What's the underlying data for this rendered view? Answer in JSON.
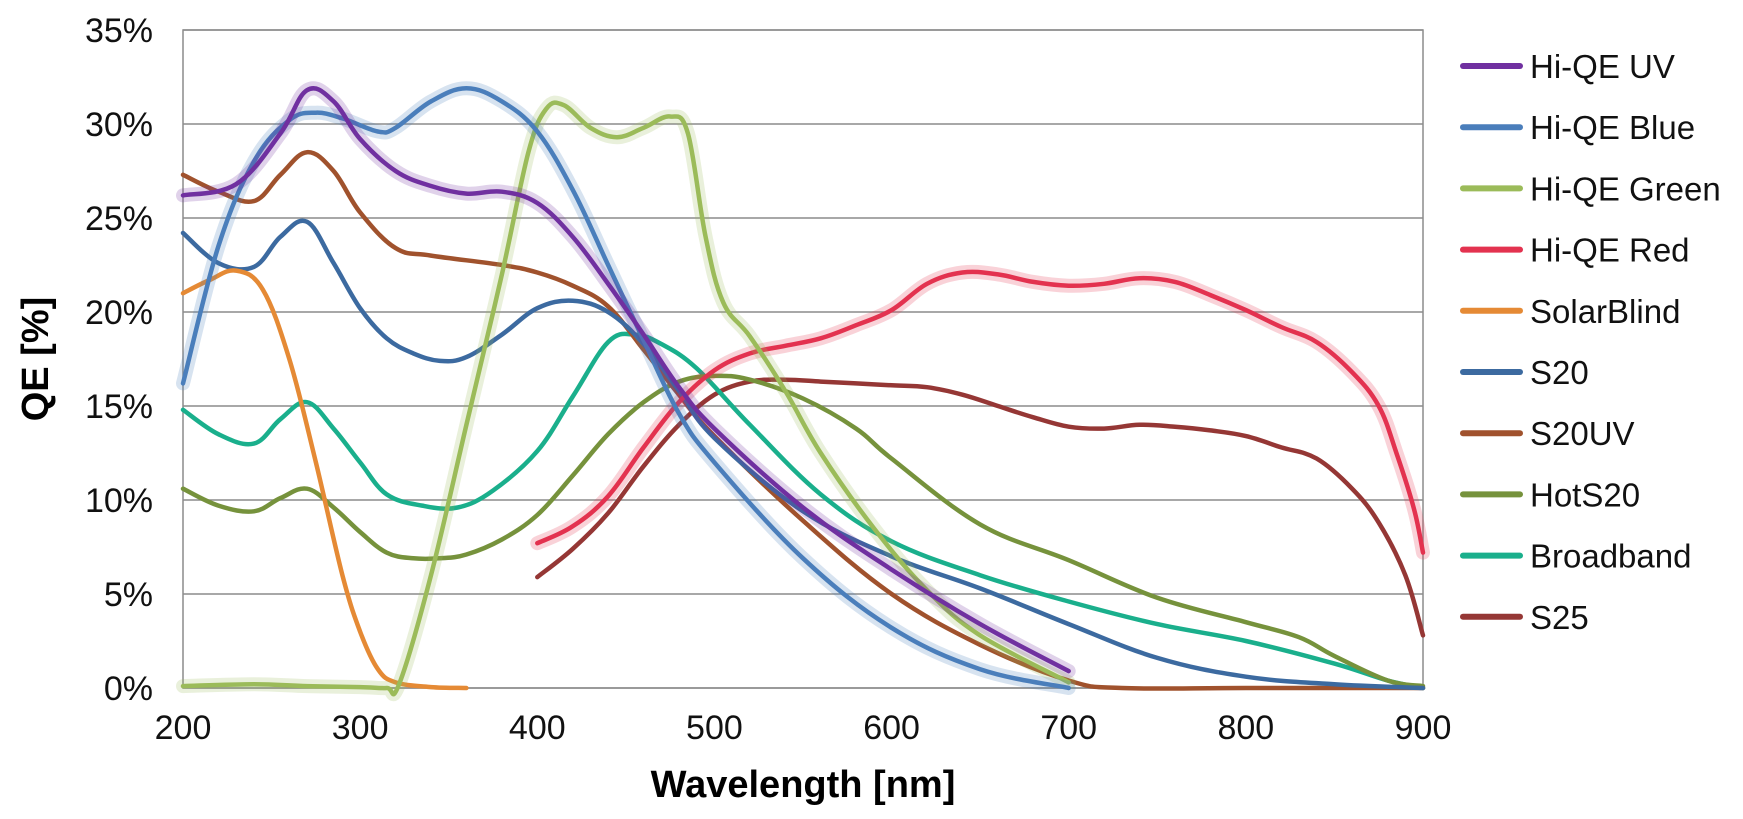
{
  "chart_data": {
    "type": "line",
    "xlabel": "Wavelength [nm]",
    "ylabel": "QE [%]",
    "xlim": [
      200,
      900
    ],
    "ylim": [
      0,
      35
    ],
    "x_ticks": [
      "200",
      "300",
      "400",
      "500",
      "600",
      "700",
      "800",
      "900"
    ],
    "y_ticks": [
      "0%",
      "5%",
      "10%",
      "15%",
      "20%",
      "25%",
      "30%",
      "35%"
    ],
    "grid": "horizontal",
    "legend_position": "right",
    "series": [
      {
        "name": "Hi-QE UV",
        "color": "#7030a0",
        "glow": true,
        "points": [
          [
            200,
            26.2
          ],
          [
            230,
            26.8
          ],
          [
            255,
            29.5
          ],
          [
            270,
            31.8
          ],
          [
            285,
            31.2
          ],
          [
            300,
            29.2
          ],
          [
            320,
            27.5
          ],
          [
            340,
            26.7
          ],
          [
            360,
            26.3
          ],
          [
            380,
            26.4
          ],
          [
            400,
            25.8
          ],
          [
            420,
            24
          ],
          [
            440,
            21.5
          ],
          [
            460,
            18.8
          ],
          [
            480,
            16
          ],
          [
            500,
            13.8
          ],
          [
            550,
            9.6
          ],
          [
            600,
            6.3
          ],
          [
            650,
            3.4
          ],
          [
            700,
            0.9
          ]
        ]
      },
      {
        "name": "Hi-QE Blue",
        "color": "#4a7ebb",
        "glow": true,
        "points": [
          [
            200,
            16.2
          ],
          [
            220,
            23.5
          ],
          [
            240,
            28
          ],
          [
            260,
            30.2
          ],
          [
            275,
            30.6
          ],
          [
            290,
            30.3
          ],
          [
            310,
            29.6
          ],
          [
            320,
            29.8
          ],
          [
            340,
            31.2
          ],
          [
            360,
            31.9
          ],
          [
            380,
            31.2
          ],
          [
            400,
            29.6
          ],
          [
            420,
            26.5
          ],
          [
            440,
            22.5
          ],
          [
            460,
            18.5
          ],
          [
            480,
            14.6
          ],
          [
            500,
            12
          ],
          [
            550,
            6.9
          ],
          [
            600,
            3.2
          ],
          [
            650,
            1
          ],
          [
            700,
            0
          ]
        ]
      },
      {
        "name": "Hi-QE Green",
        "color": "#9bbb59",
        "glow": true,
        "points": [
          [
            200,
            0.1
          ],
          [
            240,
            0.2
          ],
          [
            270,
            0.1
          ],
          [
            300,
            0.05
          ],
          [
            315,
            0
          ],
          [
            322,
            0.2
          ],
          [
            340,
            6
          ],
          [
            360,
            14
          ],
          [
            380,
            22
          ],
          [
            395,
            28.5
          ],
          [
            405,
            30.8
          ],
          [
            415,
            31
          ],
          [
            430,
            29.8
          ],
          [
            445,
            29.3
          ],
          [
            460,
            29.8
          ],
          [
            475,
            30.4
          ],
          [
            485,
            29.5
          ],
          [
            495,
            24
          ],
          [
            505,
            20.5
          ],
          [
            520,
            18.7
          ],
          [
            540,
            15.8
          ],
          [
            560,
            12.5
          ],
          [
            590,
            8.5
          ],
          [
            620,
            5.2
          ],
          [
            650,
            2.8
          ],
          [
            700,
            0.3
          ]
        ]
      },
      {
        "name": "Hi-QE Red",
        "color": "#e3324f",
        "glow": true,
        "points": [
          [
            400,
            7.7
          ],
          [
            420,
            8.6
          ],
          [
            440,
            10.2
          ],
          [
            460,
            12.8
          ],
          [
            480,
            15.2
          ],
          [
            500,
            16.9
          ],
          [
            520,
            17.8
          ],
          [
            540,
            18.2
          ],
          [
            560,
            18.6
          ],
          [
            580,
            19.3
          ],
          [
            600,
            20.1
          ],
          [
            620,
            21.5
          ],
          [
            640,
            22.1
          ],
          [
            660,
            22
          ],
          [
            680,
            21.6
          ],
          [
            700,
            21.4
          ],
          [
            720,
            21.5
          ],
          [
            740,
            21.8
          ],
          [
            760,
            21.6
          ],
          [
            780,
            20.9
          ],
          [
            800,
            20.1
          ],
          [
            820,
            19.2
          ],
          [
            840,
            18.4
          ],
          [
            860,
            16.8
          ],
          [
            875,
            15
          ],
          [
            885,
            12.5
          ],
          [
            895,
            9.5
          ],
          [
            900,
            7.2
          ]
        ]
      },
      {
        "name": "SolarBlind",
        "color": "#e58a35",
        "glow": false,
        "points": [
          [
            200,
            21
          ],
          [
            215,
            21.7
          ],
          [
            230,
            22.2
          ],
          [
            245,
            21.2
          ],
          [
            260,
            17.5
          ],
          [
            275,
            12
          ],
          [
            290,
            6
          ],
          [
            300,
            3
          ],
          [
            310,
            1
          ],
          [
            320,
            0.3
          ],
          [
            340,
            0.05
          ],
          [
            360,
            0
          ]
        ]
      },
      {
        "name": "S20",
        "color": "#3c6aa0",
        "glow": false,
        "points": [
          [
            200,
            24.2
          ],
          [
            220,
            22.6
          ],
          [
            240,
            22.4
          ],
          [
            255,
            24
          ],
          [
            270,
            24.8
          ],
          [
            285,
            22.6
          ],
          [
            300,
            20.2
          ],
          [
            315,
            18.6
          ],
          [
            330,
            17.8
          ],
          [
            345,
            17.4
          ],
          [
            360,
            17.6
          ],
          [
            380,
            18.8
          ],
          [
            400,
            20.2
          ],
          [
            420,
            20.6
          ],
          [
            440,
            20
          ],
          [
            460,
            18.3
          ],
          [
            480,
            15.8
          ],
          [
            500,
            13.3
          ],
          [
            550,
            9.4
          ],
          [
            600,
            7
          ],
          [
            650,
            5.3
          ],
          [
            700,
            3.4
          ],
          [
            750,
            1.6
          ],
          [
            800,
            0.6
          ],
          [
            850,
            0.2
          ],
          [
            900,
            0
          ]
        ]
      },
      {
        "name": "S20UV",
        "color": "#a0522d",
        "glow": false,
        "points": [
          [
            200,
            27.3
          ],
          [
            220,
            26.4
          ],
          [
            240,
            25.9
          ],
          [
            255,
            27.3
          ],
          [
            270,
            28.5
          ],
          [
            285,
            27.5
          ],
          [
            300,
            25.3
          ],
          [
            320,
            23.4
          ],
          [
            340,
            23
          ],
          [
            380,
            22.5
          ],
          [
            400,
            22.1
          ],
          [
            420,
            21.4
          ],
          [
            440,
            20.3
          ],
          [
            460,
            18
          ],
          [
            480,
            15.6
          ],
          [
            500,
            13.4
          ],
          [
            550,
            8.9
          ],
          [
            600,
            5
          ],
          [
            650,
            2.3
          ],
          [
            700,
            0.4
          ],
          [
            730,
            0
          ],
          [
            800,
            0
          ],
          [
            900,
            0
          ]
        ]
      },
      {
        "name": "HotS20",
        "color": "#76923c",
        "glow": false,
        "points": [
          [
            200,
            10.6
          ],
          [
            220,
            9.7
          ],
          [
            240,
            9.4
          ],
          [
            255,
            10.1
          ],
          [
            270,
            10.6
          ],
          [
            285,
            9.6
          ],
          [
            300,
            8.3
          ],
          [
            315,
            7.2
          ],
          [
            330,
            6.9
          ],
          [
            345,
            6.9
          ],
          [
            360,
            7.1
          ],
          [
            380,
            7.9
          ],
          [
            400,
            9.2
          ],
          [
            420,
            11.3
          ],
          [
            440,
            13.5
          ],
          [
            460,
            15.2
          ],
          [
            480,
            16.3
          ],
          [
            500,
            16.6
          ],
          [
            520,
            16.4
          ],
          [
            550,
            15.4
          ],
          [
            580,
            13.8
          ],
          [
            600,
            12.2
          ],
          [
            650,
            8.7
          ],
          [
            700,
            6.8
          ],
          [
            750,
            4.8
          ],
          [
            800,
            3.5
          ],
          [
            830,
            2.7
          ],
          [
            850,
            1.7
          ],
          [
            880,
            0.4
          ],
          [
            900,
            0.1
          ]
        ]
      },
      {
        "name": "Broadband",
        "color": "#1aaf8c",
        "glow": false,
        "points": [
          [
            200,
            14.8
          ],
          [
            220,
            13.5
          ],
          [
            240,
            13
          ],
          [
            255,
            14.3
          ],
          [
            270,
            15.2
          ],
          [
            285,
            13.8
          ],
          [
            300,
            12
          ],
          [
            315,
            10.3
          ],
          [
            335,
            9.7
          ],
          [
            355,
            9.6
          ],
          [
            375,
            10.5
          ],
          [
            400,
            12.6
          ],
          [
            420,
            15.5
          ],
          [
            440,
            18.4
          ],
          [
            455,
            18.8
          ],
          [
            470,
            18.3
          ],
          [
            490,
            17
          ],
          [
            520,
            14
          ],
          [
            560,
            10.3
          ],
          [
            600,
            7.8
          ],
          [
            650,
            6
          ],
          [
            700,
            4.6
          ],
          [
            750,
            3.4
          ],
          [
            800,
            2.5
          ],
          [
            850,
            1.3
          ],
          [
            880,
            0.4
          ],
          [
            900,
            0
          ]
        ]
      },
      {
        "name": "S25",
        "color": "#953735",
        "glow": false,
        "points": [
          [
            400,
            5.9
          ],
          [
            420,
            7.4
          ],
          [
            440,
            9.3
          ],
          [
            460,
            11.8
          ],
          [
            480,
            14
          ],
          [
            500,
            15.6
          ],
          [
            520,
            16.3
          ],
          [
            540,
            16.4
          ],
          [
            560,
            16.3
          ],
          [
            580,
            16.2
          ],
          [
            600,
            16.1
          ],
          [
            620,
            16
          ],
          [
            640,
            15.6
          ],
          [
            660,
            15
          ],
          [
            680,
            14.4
          ],
          [
            700,
            13.9
          ],
          [
            720,
            13.8
          ],
          [
            740,
            14
          ],
          [
            760,
            13.9
          ],
          [
            780,
            13.7
          ],
          [
            800,
            13.4
          ],
          [
            820,
            12.8
          ],
          [
            840,
            12.2
          ],
          [
            860,
            10.6
          ],
          [
            875,
            8.8
          ],
          [
            890,
            6
          ],
          [
            900,
            2.8
          ]
        ]
      }
    ]
  }
}
